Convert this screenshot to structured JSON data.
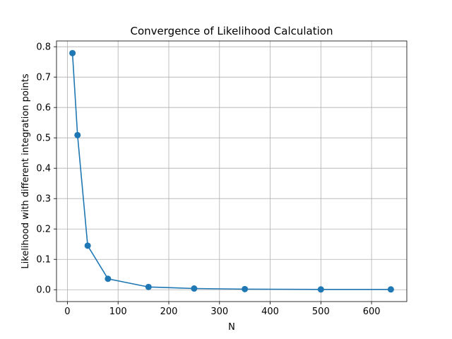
{
  "chart_data": {
    "type": "line",
    "title": "Convergence of Likelihood Calculation",
    "xlabel": "N",
    "ylabel": "Likelihood with different integration points",
    "xlim": [
      -21.5,
      669.5
    ],
    "ylim": [
      -0.039,
      0.819
    ],
    "xticks": [
      0,
      100,
      200,
      300,
      400,
      500,
      600
    ],
    "yticks": [
      0.0,
      0.1,
      0.2,
      0.3,
      0.4,
      0.5,
      0.6,
      0.7,
      0.8
    ],
    "ytick_labels": [
      "0.0",
      "0.1",
      "0.2",
      "0.3",
      "0.4",
      "0.5",
      "0.6",
      "0.7",
      "0.8"
    ],
    "grid": true,
    "line_color": "#1f77b4",
    "series": [
      {
        "x": [
          10,
          20,
          40,
          80,
          160,
          250,
          350,
          500,
          638
        ],
        "values": [
          0.779,
          0.509,
          0.145,
          0.036,
          0.009,
          0.004,
          0.002,
          0.001,
          0.001
        ]
      }
    ]
  }
}
